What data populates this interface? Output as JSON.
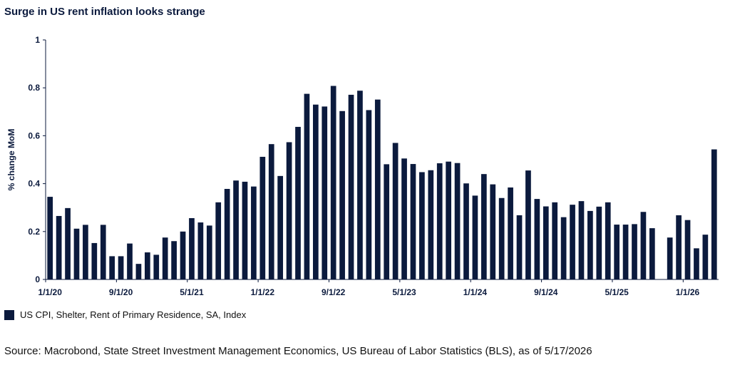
{
  "title": "Surge in US rent inflation looks strange",
  "legend_label": "US CPI, Shelter, Rent of Primary Residence, SA, Index",
  "source": "Source: Macrobond, State Street Investment Management Economics, US Bureau of Labor Statistics (BLS), as of 5/17/2026",
  "colors": {
    "bar": "#0b1a3d",
    "axis": "#0b1a3d"
  },
  "chart_data": {
    "type": "bar",
    "ylabel": "% change MoM",
    "ylim": [
      0,
      1
    ],
    "yticks": [
      0,
      0.2,
      0.4,
      0.6,
      0.8,
      1
    ],
    "ytick_labels": [
      "0",
      "0.2",
      "0.4",
      "0.6",
      "0.8",
      "1"
    ],
    "x_tick_labels": [
      {
        "index": 0,
        "label": "1/1/20"
      },
      {
        "index": 8,
        "label": "9/1/20"
      },
      {
        "index": 16,
        "label": "5/1/21"
      },
      {
        "index": 24,
        "label": "1/1/22"
      },
      {
        "index": 32,
        "label": "9/1/22"
      },
      {
        "index": 40,
        "label": "5/1/23"
      },
      {
        "index": 48,
        "label": "1/1/24"
      },
      {
        "index": 56,
        "label": "9/1/24"
      },
      {
        "index": 64,
        "label": "5/1/25"
      },
      {
        "index": 72,
        "label": "1/1/26"
      }
    ],
    "series": [
      {
        "name": "US CPI, Shelter, Rent of Primary Residence, SA, Index",
        "values": [
          0.345,
          0.265,
          0.298,
          0.212,
          0.228,
          0.152,
          0.228,
          0.097,
          0.097,
          0.15,
          0.065,
          0.113,
          0.103,
          0.175,
          0.16,
          0.2,
          0.256,
          0.238,
          0.225,
          0.322,
          0.378,
          0.413,
          0.408,
          0.388,
          0.512,
          0.565,
          0.432,
          0.573,
          0.637,
          0.775,
          0.73,
          0.722,
          0.808,
          0.703,
          0.771,
          0.788,
          0.707,
          0.751,
          0.481,
          0.57,
          0.505,
          0.482,
          0.448,
          0.456,
          0.485,
          0.492,
          0.486,
          0.401,
          0.35,
          0.44,
          0.397,
          0.34,
          0.384,
          0.268,
          0.455,
          0.336,
          0.305,
          0.322,
          0.26,
          0.312,
          0.327,
          0.286,
          0.304,
          0.322,
          0.229,
          0.229,
          0.231,
          0.282,
          0.214,
          null,
          0.175,
          0.268,
          0.248,
          0.13,
          0.187,
          0.543
        ]
      }
    ]
  }
}
